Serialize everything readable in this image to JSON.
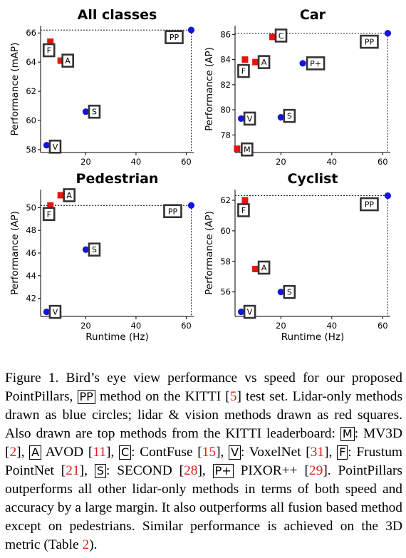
{
  "chart_data": [
    {
      "type": "scatter",
      "title": "All classes",
      "xlabel": "",
      "ylabel": "Performance (mAP)",
      "xlim": [
        2,
        63
      ],
      "ylim": [
        57.8,
        66.5
      ],
      "xticks": [
        "20",
        "40",
        "60"
      ],
      "yticks": [
        "58",
        "60",
        "62",
        "64",
        "66"
      ],
      "best_x": 62,
      "best_y": 66.2,
      "points": [
        {
          "label": "F",
          "x": 5.9,
          "y": 65.4,
          "kind": "lidar_vision",
          "color": "#e8130f"
        },
        {
          "label": "A",
          "x": 10.0,
          "y": 64.1,
          "kind": "lidar_vision",
          "color": "#e8130f"
        },
        {
          "label": "S",
          "x": 20.0,
          "y": 60.6,
          "kind": "lidar_only",
          "color": "#1414e0"
        },
        {
          "label": "V",
          "x": 4.4,
          "y": 58.3,
          "kind": "lidar_only",
          "color": "#1414e0"
        },
        {
          "label": "PP",
          "x": 62.0,
          "y": 66.2,
          "kind": "lidar_only",
          "color": "#1414e0"
        }
      ]
    },
    {
      "type": "scatter",
      "title": "Car",
      "xlabel": "",
      "ylabel": "Performance (AP)",
      "xlim": [
        2,
        63
      ],
      "ylim": [
        76.6,
        86.7
      ],
      "xticks": [
        "20",
        "40",
        "60"
      ],
      "yticks": [
        "78",
        "80",
        "82",
        "84",
        "86"
      ],
      "best_x": 62,
      "best_y": 86.1,
      "points": [
        {
          "label": "C",
          "x": 16.7,
          "y": 85.8,
          "kind": "lidar_vision",
          "color": "#e8130f"
        },
        {
          "label": "F",
          "x": 5.9,
          "y": 84.0,
          "kind": "lidar_vision",
          "color": "#e8130f"
        },
        {
          "label": "A",
          "x": 10.0,
          "y": 83.8,
          "kind": "lidar_vision",
          "color": "#e8130f"
        },
        {
          "label": "M",
          "x": 2.8,
          "y": 76.9,
          "kind": "lidar_vision",
          "color": "#e8130f"
        },
        {
          "label": "P+",
          "x": 28.6,
          "y": 83.7,
          "kind": "lidar_only",
          "color": "#1414e0"
        },
        {
          "label": "V",
          "x": 4.4,
          "y": 79.3,
          "kind": "lidar_only",
          "color": "#1414e0"
        },
        {
          "label": "S",
          "x": 20.0,
          "y": 79.4,
          "kind": "lidar_only",
          "color": "#1414e0"
        },
        {
          "label": "PP",
          "x": 62.0,
          "y": 86.1,
          "kind": "lidar_only",
          "color": "#1414e0"
        }
      ]
    },
    {
      "type": "scatter",
      "title": "Pedestrian",
      "xlabel": "Runtime (Hz)",
      "ylabel": "Performance (AP)",
      "xlim": [
        2,
        63
      ],
      "ylim": [
        40.4,
        51.6
      ],
      "xticks": [
        "20",
        "40",
        "60"
      ],
      "yticks": [
        "42",
        "44",
        "46",
        "48",
        "50"
      ],
      "best_x": 62,
      "best_y": 50.2,
      "points": [
        {
          "label": "A",
          "x": 10.0,
          "y": 51.1,
          "kind": "lidar_vision",
          "color": "#e8130f"
        },
        {
          "label": "F",
          "x": 5.9,
          "y": 50.2,
          "kind": "lidar_vision",
          "color": "#e8130f"
        },
        {
          "label": "S",
          "x": 20.0,
          "y": 46.3,
          "kind": "lidar_only",
          "color": "#1414e0"
        },
        {
          "label": "V",
          "x": 4.4,
          "y": 40.8,
          "kind": "lidar_only",
          "color": "#1414e0"
        },
        {
          "label": "PP",
          "x": 62.0,
          "y": 50.2,
          "kind": "lidar_only",
          "color": "#1414e0"
        }
      ]
    },
    {
      "type": "scatter",
      "title": "Cyclist",
      "xlabel": "Runtime (Hz)",
      "ylabel": "Performance (AP)",
      "xlim": [
        2,
        63
      ],
      "ylim": [
        54.4,
        62.7
      ],
      "xticks": [
        "20",
        "40",
        "60"
      ],
      "yticks": [
        "56",
        "58",
        "60",
        "62"
      ],
      "best_x": 62,
      "best_y": 62.3,
      "points": [
        {
          "label": "F",
          "x": 5.9,
          "y": 62.0,
          "kind": "lidar_vision",
          "color": "#e8130f"
        },
        {
          "label": "A",
          "x": 10.0,
          "y": 57.5,
          "kind": "lidar_vision",
          "color": "#e8130f"
        },
        {
          "label": "S",
          "x": 20.0,
          "y": 56.0,
          "kind": "lidar_only",
          "color": "#1414e0"
        },
        {
          "label": "V",
          "x": 4.4,
          "y": 54.7,
          "kind": "lidar_only",
          "color": "#1414e0"
        },
        {
          "label": "PP",
          "x": 62.0,
          "y": 62.3,
          "kind": "lidar_only",
          "color": "#1414e0"
        }
      ]
    }
  ],
  "caption": {
    "c1": "Figure 1. Bird’s eye view performance vs speed for our proposed PointPillars,",
    "pp": "PP",
    "c2": "method on the KITTI [",
    "r5": "5",
    "c3": "] test set. Lidar-only methods drawn as blue circles; lidar & vision methods drawn as red squares. Also drawn are top methods from the KITTI leaderboard:",
    "m": "M",
    "c4": ": MV3D [",
    "r2": "2",
    "c5": "],",
    "a": "A",
    "c6": "AVOD [",
    "r11": "11",
    "c7": "],",
    "c": "C",
    "c8": ": ContFuse [",
    "r15": "15",
    "c9": "],",
    "v": "V",
    "c10": ": VoxelNet [",
    "r31": "31",
    "c11": "],",
    "f": "F",
    "c12": ": Frustum PointNet [",
    "r21": "21",
    "c13": "],",
    "s": "S",
    "c14": ": SECOND [",
    "r28": "28",
    "c15": "],",
    "pplus": "P+",
    "c16": "PIXOR++ [",
    "r29": "29",
    "c17": "]. PointPillars outperforms all other lidar-only methods in terms of both speed and accuracy by a large margin. It also outperforms all fusion based method except on pedestrians. Similar performance is achieved on the 3D metric (Table",
    "t2": "2",
    "c18": ")."
  }
}
